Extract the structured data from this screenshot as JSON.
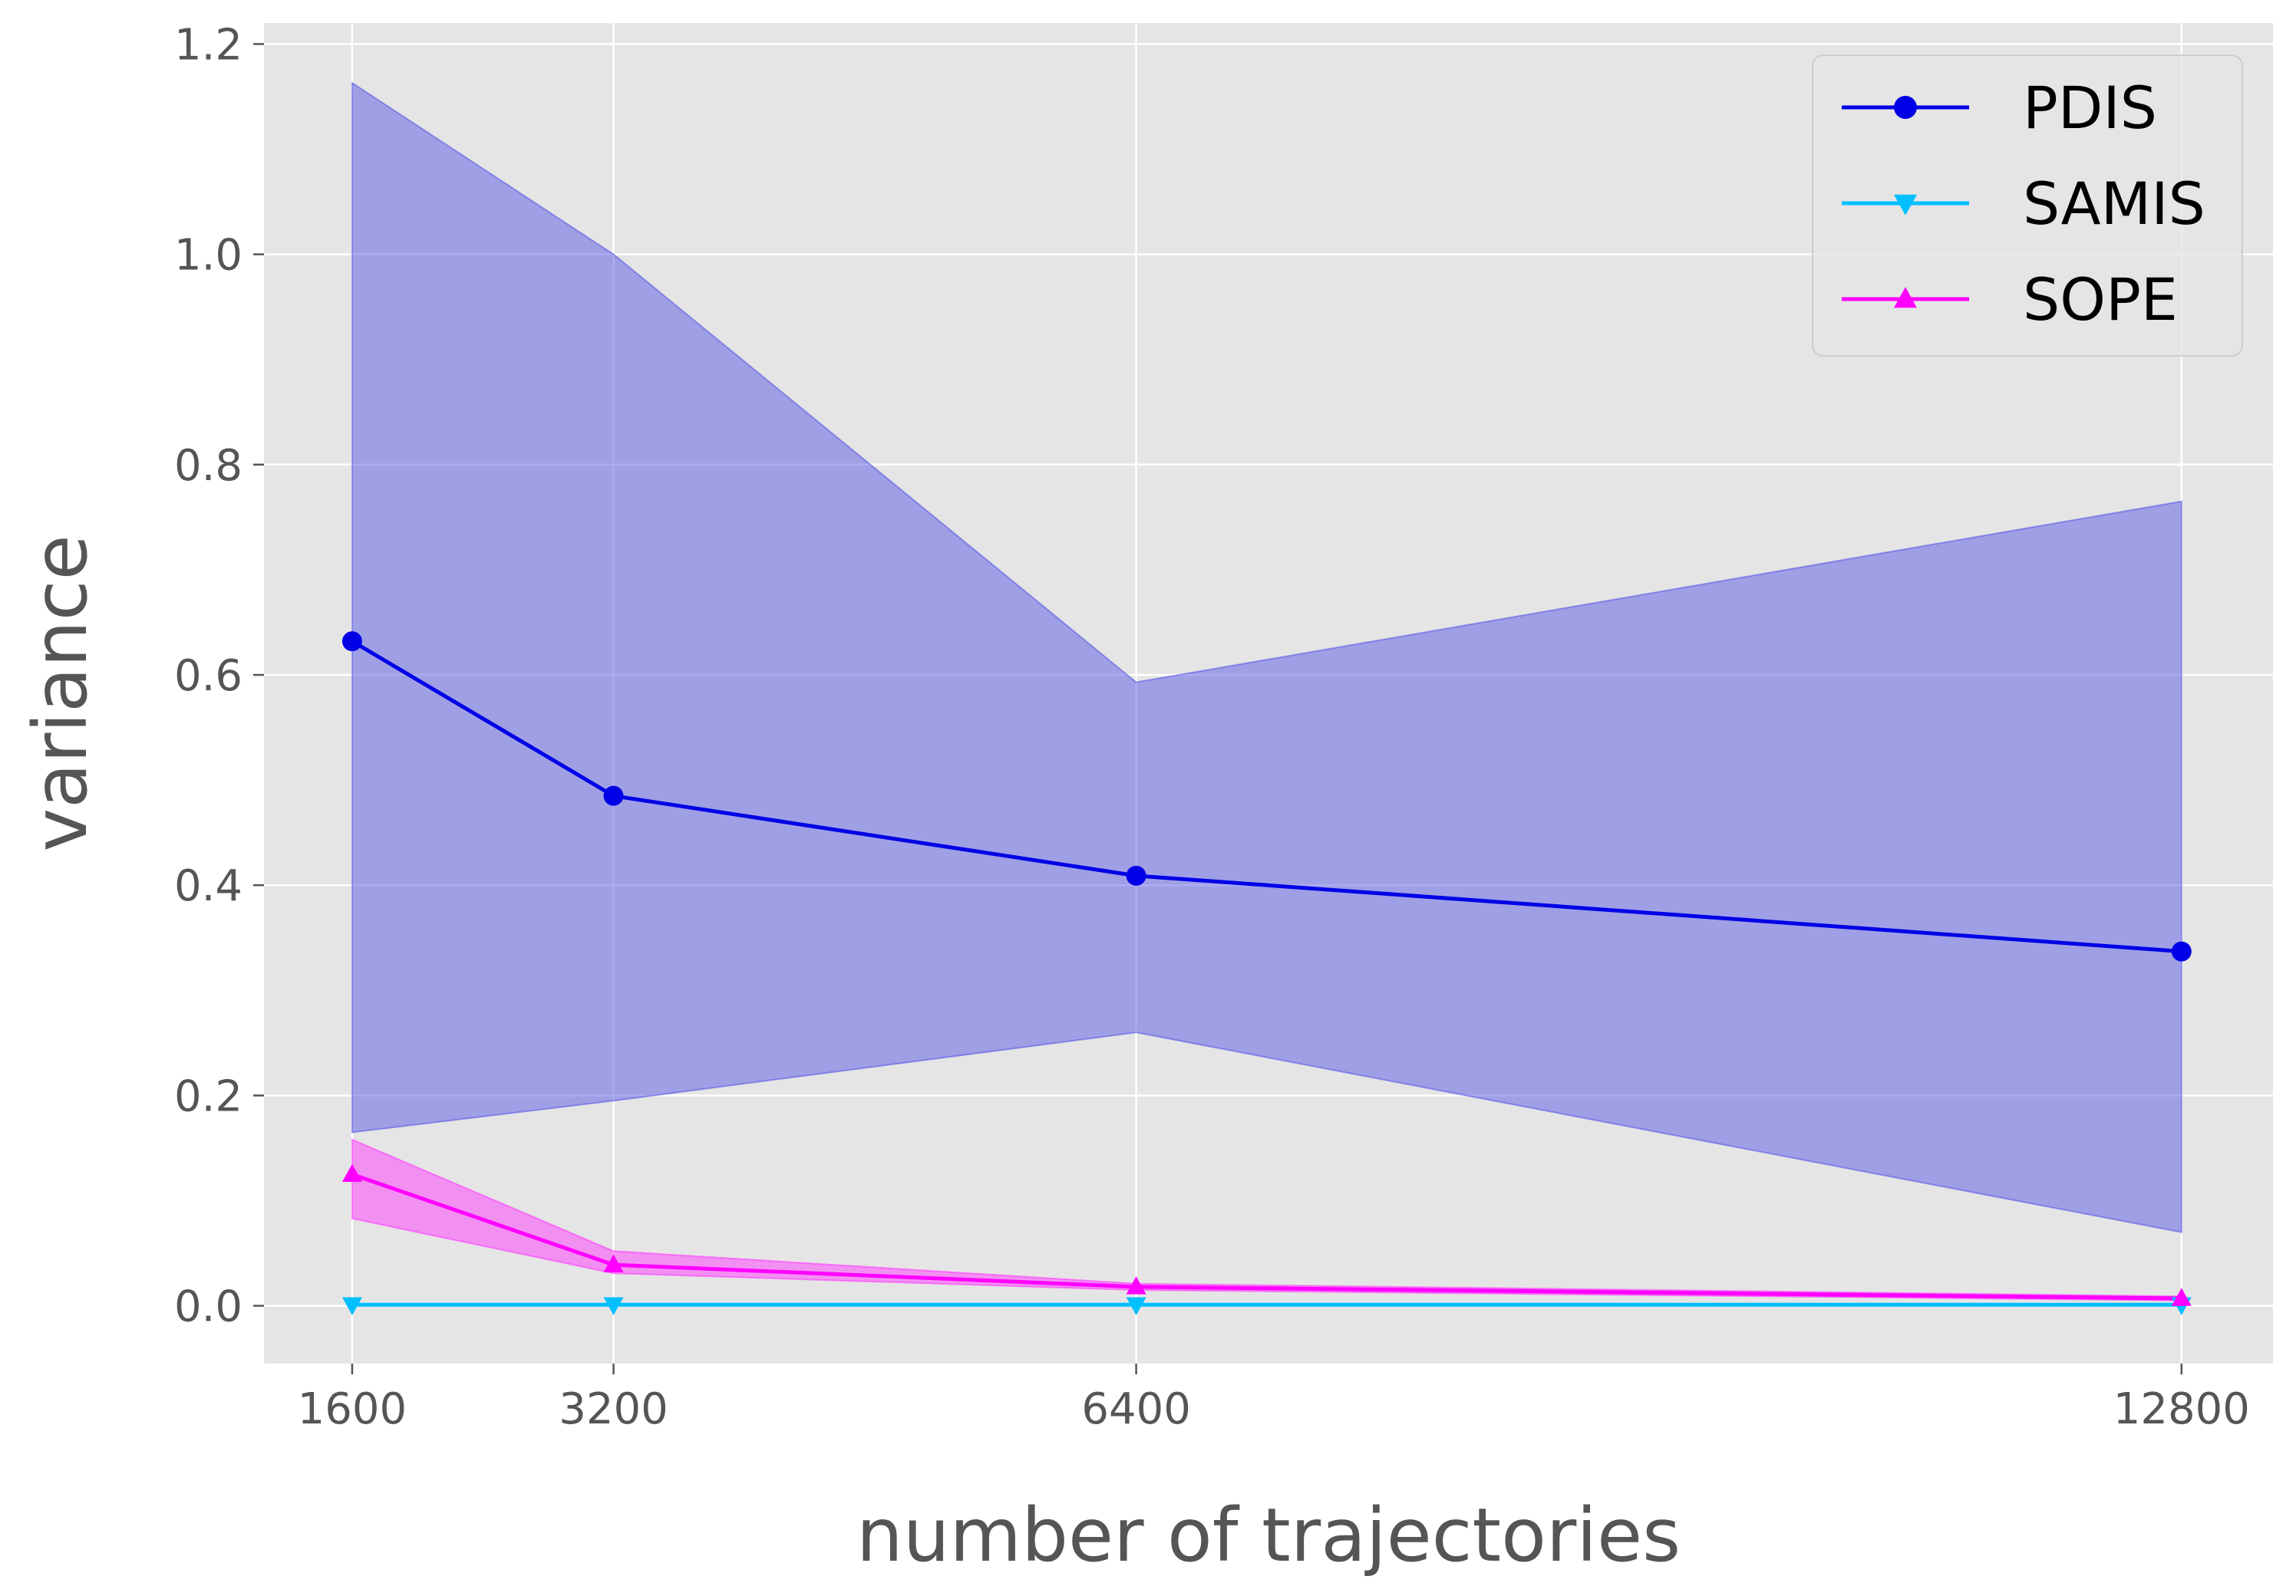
{
  "chart_data": {
    "type": "line",
    "xlabel": "number of trajectories",
    "ylabel": "variance",
    "x": [
      1600,
      3200,
      6400,
      12800
    ],
    "x_tick_labels": [
      "1600",
      "3200",
      "6400",
      "12800"
    ],
    "y_ticks": [
      0.0,
      0.2,
      0.4,
      0.6,
      0.8,
      1.0,
      1.2
    ],
    "y_tick_labels": [
      "0.0",
      "0.2",
      "0.4",
      "0.6",
      "0.8",
      "1.0",
      "1.2"
    ],
    "xlim": [
      1060,
      13360
    ],
    "ylim": [
      -0.055,
      1.22
    ],
    "grid": true,
    "legend_position": "top-right",
    "background_color": "#e5e5e5",
    "series": [
      {
        "name": "PDIS",
        "values": [
          0.632,
          0.485,
          0.409,
          0.337
        ],
        "lower": [
          0.165,
          0.195,
          0.26,
          0.07
        ],
        "upper": [
          1.163,
          1.0,
          0.593,
          0.765
        ],
        "color": "#0000e6",
        "fill_color": "#5a5ae6",
        "marker": "circle"
      },
      {
        "name": "SAMIS",
        "values": [
          0.001,
          0.001,
          0.001,
          0.001
        ],
        "lower": [
          0.0,
          0.0,
          0.0,
          0.0
        ],
        "upper": [
          0.002,
          0.002,
          0.002,
          0.002
        ],
        "color": "#00bfff",
        "fill_color": "#00bfff",
        "marker": "triangle-down"
      },
      {
        "name": "SOPE",
        "values": [
          0.125,
          0.039,
          0.018,
          0.007
        ],
        "lower": [
          0.083,
          0.031,
          0.015,
          0.005
        ],
        "upper": [
          0.158,
          0.052,
          0.021,
          0.009
        ],
        "color": "#ff00ff",
        "fill_color": "#ff3cff",
        "marker": "triangle-up"
      }
    ]
  }
}
